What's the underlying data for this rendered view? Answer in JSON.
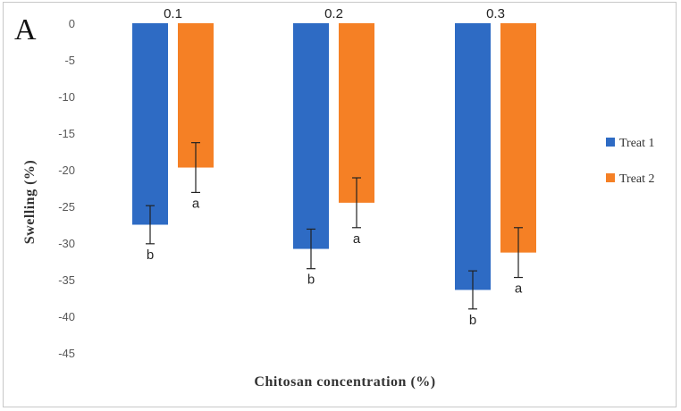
{
  "chart_data": {
    "type": "bar",
    "panel_label": "A",
    "title": "",
    "xlabel": "Chitosan concentration  (%)",
    "ylabel": "Swelling (%)",
    "categories": [
      "0.1",
      "0.2",
      "0.3"
    ],
    "ylim": [
      -45,
      0
    ],
    "yticks": [
      0,
      -5,
      -10,
      -15,
      -20,
      -25,
      -30,
      -35,
      -40,
      -45
    ],
    "grid": false,
    "legend_position": "right",
    "series": [
      {
        "name": "Treat 1",
        "color": "#2e6bc4",
        "values": [
          -27.5,
          -30.8,
          -36.4
        ],
        "errors": [
          2.6,
          2.7,
          2.6
        ],
        "letters": [
          "b",
          "b",
          "b"
        ]
      },
      {
        "name": "Treat 2",
        "color": "#f58025",
        "values": [
          -19.7,
          -24.5,
          -31.3
        ],
        "errors": [
          3.4,
          3.4,
          3.4
        ],
        "letters": [
          "a",
          "a",
          "a"
        ]
      }
    ]
  }
}
